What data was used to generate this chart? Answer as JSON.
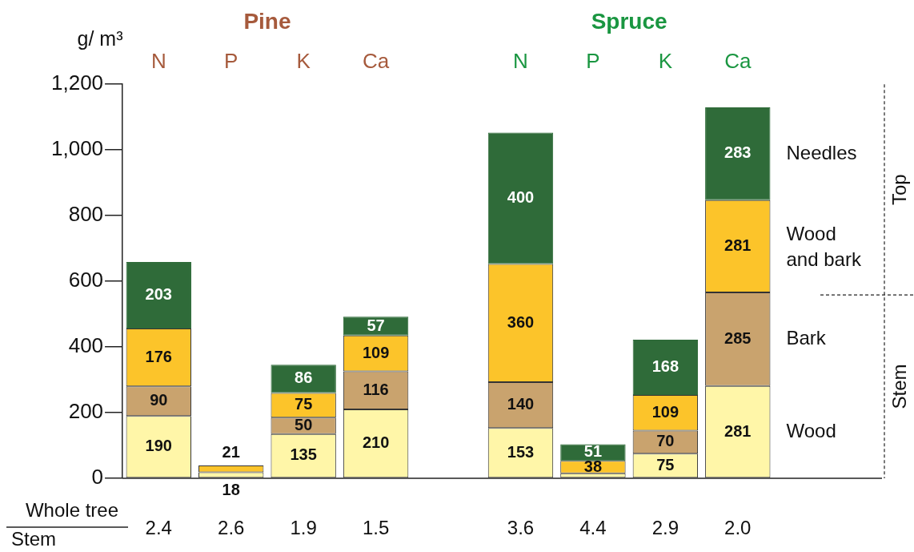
{
  "chart_data": {
    "type": "bar",
    "stacked": true,
    "ylabel": "g/ m³",
    "categories": [
      "N",
      "P",
      "K",
      "Ca",
      null,
      "N",
      "P",
      "K",
      "Ca"
    ],
    "series": [
      {
        "name": "Wood",
        "color": "#fff6a8",
        "values": [
          190,
          18,
          135,
          210,
          null,
          153,
          15,
          75,
          281
        ],
        "value_labels": [
          "190",
          "18",
          "135",
          "210",
          null,
          "153",
          null,
          "75",
          "281"
        ]
      },
      {
        "name": "Bark",
        "color": "#c9a36e",
        "values": [
          90,
          null,
          50,
          116,
          null,
          140,
          null,
          70,
          285
        ],
        "value_labels": [
          "90",
          null,
          "50",
          "116",
          null,
          "140",
          null,
          "70",
          "285"
        ]
      },
      {
        "name": "Wood and bark",
        "color": "#fcc42a",
        "values": [
          176,
          21,
          75,
          109,
          null,
          360,
          38,
          109,
          281
        ],
        "value_labels": [
          "176",
          "21",
          "75",
          "109",
          null,
          "360",
          "38",
          "109",
          "281"
        ]
      },
      {
        "name": "Needles",
        "color": "#2f6b39",
        "values": [
          203,
          null,
          86,
          57,
          null,
          400,
          51,
          168,
          283
        ],
        "value_labels": [
          "203",
          null,
          "86",
          "57",
          null,
          "400",
          "51",
          "168",
          "283"
        ]
      }
    ],
    "ylim": [
      0,
      1200
    ],
    "yticks": [
      0,
      200,
      400,
      600,
      800,
      {
        "value": 1000,
        "label": "1,000"
      },
      {
        "value": 1200,
        "label": "1,200"
      }
    ],
    "annotations": [
      "Pine",
      "Spruce",
      "Top",
      "Stem",
      "Whole tree",
      "Stem",
      "2.4",
      "2.6",
      "1.9",
      "1.5",
      "3.6",
      "4.4",
      "2.9",
      "2.0"
    ]
  }
}
